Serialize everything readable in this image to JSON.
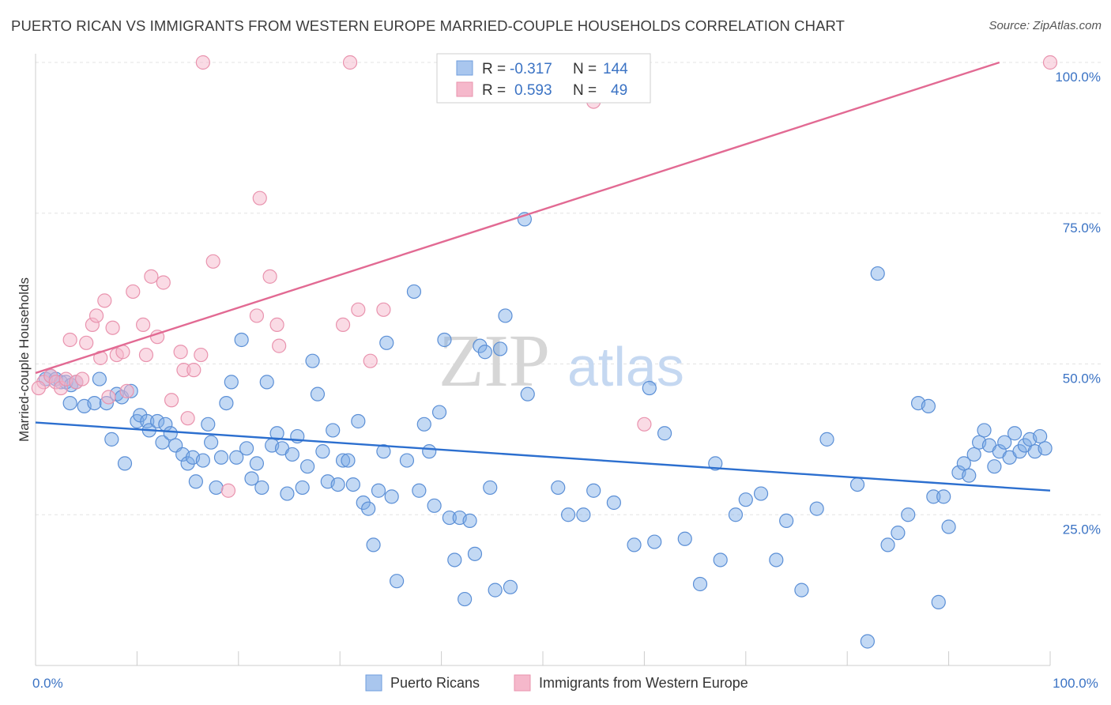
{
  "title": "PUERTO RICAN VS IMMIGRANTS FROM WESTERN EUROPE MARRIED-COUPLE HOUSEHOLDS CORRELATION CHART",
  "source": "Source: ZipAtlas.com",
  "watermark": {
    "zip": "ZIP",
    "atlas": "atlas"
  },
  "legend": {
    "rows": [
      {
        "r_label": "R =",
        "r_value": "-0.317",
        "n_label": "N =",
        "n_value": "144",
        "color": "#a9c6ee"
      },
      {
        "r_label": "R =",
        "r_value": "0.593",
        "n_label": "N =",
        "n_value": "49",
        "color": "#f5b8cb"
      }
    ]
  },
  "bottom_legend": [
    {
      "label": "Puerto Ricans",
      "color": "#a9c6ee"
    },
    {
      "label": "Immigrants from Western Europe",
      "color": "#f5b8cb"
    }
  ],
  "chart_data": {
    "type": "scatter",
    "xlabel": "",
    "ylabel": "Married-couple Households",
    "xlim": [
      0,
      100
    ],
    "ylim": [
      0,
      100
    ],
    "x_tick_labels": [
      {
        "value": 0,
        "label": "0.0%"
      },
      {
        "value": 100,
        "label": "100.0%"
      }
    ],
    "y_tick_labels": [
      {
        "value": 25,
        "label": "25.0%"
      },
      {
        "value": 50,
        "label": "50.0%"
      },
      {
        "value": 75,
        "label": "75.0%"
      },
      {
        "value": 100,
        "label": "100.0%"
      }
    ],
    "grid": true,
    "series": [
      {
        "name": "Puerto Ricans",
        "color": "#7aaae6",
        "stroke": "#5b8fd6",
        "trend": {
          "x": [
            0,
            100
          ],
          "y": [
            40.3,
            29.0
          ],
          "color": "#2c6fcf"
        },
        "points": [
          [
            1.0,
            47.5
          ],
          [
            1.5,
            48.0
          ],
          [
            2.0,
            47.5
          ],
          [
            2.5,
            47.0
          ],
          [
            3.0,
            47.0
          ],
          [
            3.5,
            46.5
          ],
          [
            4.0,
            47.0
          ],
          [
            3.4,
            43.5
          ],
          [
            4.8,
            43.0
          ],
          [
            5.8,
            43.5
          ],
          [
            6.3,
            47.5
          ],
          [
            7.0,
            43.5
          ],
          [
            8.0,
            45.0
          ],
          [
            8.5,
            44.5
          ],
          [
            9.4,
            45.5
          ],
          [
            7.5,
            37.5
          ],
          [
            8.8,
            33.5
          ],
          [
            10.0,
            40.5
          ],
          [
            10.3,
            41.5
          ],
          [
            11.0,
            40.5
          ],
          [
            11.2,
            39.0
          ],
          [
            12.0,
            40.5
          ],
          [
            12.5,
            37.0
          ],
          [
            12.8,
            40.0
          ],
          [
            13.3,
            38.5
          ],
          [
            13.8,
            36.5
          ],
          [
            14.5,
            35.0
          ],
          [
            15.0,
            33.5
          ],
          [
            15.5,
            34.5
          ],
          [
            15.8,
            30.5
          ],
          [
            16.5,
            34.0
          ],
          [
            17.0,
            40.0
          ],
          [
            17.3,
            37.0
          ],
          [
            17.8,
            29.5
          ],
          [
            18.3,
            34.5
          ],
          [
            18.8,
            43.5
          ],
          [
            19.3,
            47.0
          ],
          [
            19.8,
            34.5
          ],
          [
            20.3,
            54.0
          ],
          [
            20.8,
            36.0
          ],
          [
            21.3,
            31.0
          ],
          [
            21.8,
            33.5
          ],
          [
            22.3,
            29.5
          ],
          [
            22.8,
            47.0
          ],
          [
            23.3,
            36.5
          ],
          [
            23.8,
            38.5
          ],
          [
            24.3,
            36.0
          ],
          [
            24.8,
            28.5
          ],
          [
            25.3,
            35.0
          ],
          [
            25.8,
            38.0
          ],
          [
            26.3,
            29.5
          ],
          [
            26.8,
            33.0
          ],
          [
            27.3,
            50.5
          ],
          [
            27.8,
            45.0
          ],
          [
            28.3,
            35.5
          ],
          [
            28.8,
            30.5
          ],
          [
            29.3,
            39.0
          ],
          [
            29.8,
            30.0
          ],
          [
            30.3,
            34.0
          ],
          [
            30.8,
            34.0
          ],
          [
            31.3,
            30.0
          ],
          [
            31.8,
            40.5
          ],
          [
            32.3,
            27.0
          ],
          [
            32.8,
            26.0
          ],
          [
            33.3,
            20.0
          ],
          [
            33.8,
            29.0
          ],
          [
            34.3,
            35.5
          ],
          [
            34.6,
            53.5
          ],
          [
            35.1,
            28.0
          ],
          [
            35.6,
            14.0
          ],
          [
            36.6,
            34.0
          ],
          [
            37.3,
            62.0
          ],
          [
            37.8,
            29.0
          ],
          [
            38.3,
            40.0
          ],
          [
            38.8,
            35.5
          ],
          [
            39.3,
            26.5
          ],
          [
            39.8,
            42.0
          ],
          [
            40.3,
            54.0
          ],
          [
            40.8,
            24.5
          ],
          [
            41.3,
            17.5
          ],
          [
            41.8,
            24.5
          ],
          [
            42.3,
            11.0
          ],
          [
            42.8,
            24.0
          ],
          [
            43.3,
            18.5
          ],
          [
            43.8,
            53.0
          ],
          [
            44.3,
            52.0
          ],
          [
            44.8,
            29.5
          ],
          [
            45.3,
            12.5
          ],
          [
            45.8,
            52.5
          ],
          [
            46.3,
            58.0
          ],
          [
            46.8,
            13.0
          ],
          [
            48.5,
            45.0
          ],
          [
            48.2,
            74.0
          ],
          [
            51.5,
            29.5
          ],
          [
            52.5,
            25.0
          ],
          [
            54.0,
            25.0
          ],
          [
            55.0,
            29.0
          ],
          [
            57.0,
            27.0
          ],
          [
            59.0,
            20.0
          ],
          [
            60.5,
            46.0
          ],
          [
            61.0,
            20.5
          ],
          [
            62.0,
            38.5
          ],
          [
            64.0,
            21.0
          ],
          [
            65.5,
            13.5
          ],
          [
            67.0,
            33.5
          ],
          [
            67.5,
            17.5
          ],
          [
            69.0,
            25.0
          ],
          [
            70.0,
            27.5
          ],
          [
            71.5,
            28.5
          ],
          [
            73.0,
            17.5
          ],
          [
            74.0,
            24.0
          ],
          [
            75.5,
            12.5
          ],
          [
            77.0,
            26.0
          ],
          [
            78.0,
            37.5
          ],
          [
            81.0,
            30.0
          ],
          [
            82.0,
            4.0
          ],
          [
            83.0,
            65.0
          ],
          [
            84.0,
            20.0
          ],
          [
            85.0,
            22.0
          ],
          [
            86.0,
            25.0
          ],
          [
            87.0,
            43.5
          ],
          [
            88.0,
            43.0
          ],
          [
            88.5,
            28.0
          ],
          [
            89.0,
            10.5
          ],
          [
            89.5,
            28.0
          ],
          [
            90.0,
            23.0
          ],
          [
            91.0,
            32.0
          ],
          [
            91.5,
            33.5
          ],
          [
            92.0,
            31.5
          ],
          [
            92.5,
            35.0
          ],
          [
            93.0,
            37.0
          ],
          [
            93.5,
            39.0
          ],
          [
            94.0,
            36.5
          ],
          [
            94.5,
            33.0
          ],
          [
            95.0,
            35.5
          ],
          [
            95.5,
            37.0
          ],
          [
            96.0,
            34.5
          ],
          [
            96.5,
            38.5
          ],
          [
            97.0,
            35.5
          ],
          [
            97.5,
            36.5
          ],
          [
            98.0,
            37.5
          ],
          [
            98.5,
            35.5
          ],
          [
            99.0,
            38.0
          ],
          [
            99.5,
            36.0
          ]
        ]
      },
      {
        "name": "Immigrants from Western Europe",
        "color": "#f5b8cb",
        "stroke": "#e993ae",
        "trend": {
          "x": [
            0,
            95.0
          ],
          "y": [
            48.5,
            100.0
          ],
          "color": "#e26a93"
        },
        "points": [
          [
            0.8,
            47.0
          ],
          [
            1.5,
            48.0
          ],
          [
            2.0,
            47.0
          ],
          [
            2.5,
            46.0
          ],
          [
            3.0,
            47.5
          ],
          [
            3.4,
            54.0
          ],
          [
            4.0,
            47.0
          ],
          [
            4.6,
            47.5
          ],
          [
            5.0,
            53.5
          ],
          [
            5.6,
            56.5
          ],
          [
            6.0,
            58.0
          ],
          [
            6.4,
            51.0
          ],
          [
            6.8,
            60.5
          ],
          [
            7.2,
            44.5
          ],
          [
            7.6,
            56.0
          ],
          [
            8.0,
            51.5
          ],
          [
            8.6,
            52.0
          ],
          [
            9.0,
            45.5
          ],
          [
            9.6,
            62.0
          ],
          [
            10.6,
            56.5
          ],
          [
            10.9,
            51.5
          ],
          [
            11.4,
            64.5
          ],
          [
            12.0,
            54.5
          ],
          [
            12.6,
            63.5
          ],
          [
            13.4,
            44.0
          ],
          [
            14.3,
            52.0
          ],
          [
            14.6,
            49.0
          ],
          [
            15.0,
            41.0
          ],
          [
            15.6,
            49.0
          ],
          [
            16.3,
            51.5
          ],
          [
            16.5,
            100.0
          ],
          [
            17.5,
            67.0
          ],
          [
            19.0,
            29.0
          ],
          [
            21.8,
            58.0
          ],
          [
            22.1,
            77.5
          ],
          [
            23.1,
            64.5
          ],
          [
            23.8,
            56.5
          ],
          [
            24.0,
            53.0
          ],
          [
            30.3,
            56.5
          ],
          [
            31.0,
            100.0
          ],
          [
            31.8,
            59.0
          ],
          [
            33.0,
            50.5
          ],
          [
            34.3,
            59.0
          ],
          [
            47.0,
            100.0
          ],
          [
            47.5,
            100.0
          ],
          [
            55.0,
            93.5
          ],
          [
            60.0,
            40.0
          ],
          [
            100.0,
            100.0
          ],
          [
            0.3,
            46.0
          ]
        ]
      }
    ]
  }
}
